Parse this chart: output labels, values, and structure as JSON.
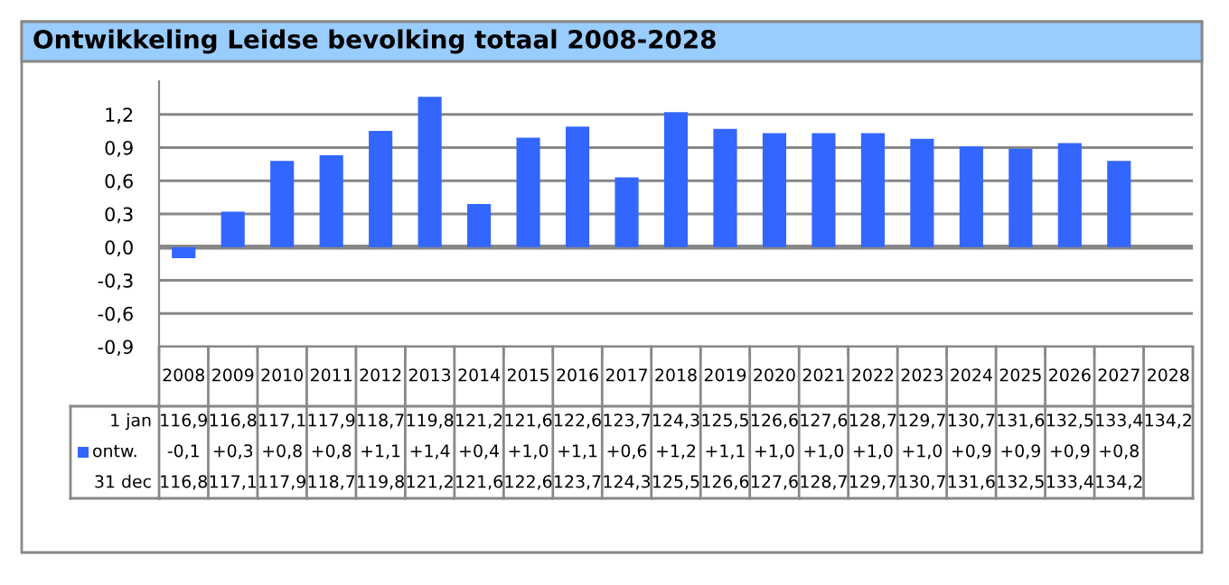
{
  "chart_data": {
    "type": "bar",
    "title": "Ontwikkeling Leidse bevolking totaal 2008-2028",
    "categories": [
      "2008",
      "2009",
      "2010",
      "2011",
      "2012",
      "2013",
      "2014",
      "2015",
      "2016",
      "2017",
      "2018",
      "2019",
      "2020",
      "2021",
      "2022",
      "2023",
      "2024",
      "2025",
      "2026",
      "2027",
      "2028"
    ],
    "series": [
      {
        "name": "ontw.",
        "color": "#3366ff",
        "values": [
          -0.1,
          0.32,
          0.78,
          0.83,
          1.05,
          1.36,
          0.39,
          0.99,
          1.09,
          0.63,
          1.22,
          1.07,
          1.03,
          1.03,
          1.03,
          0.98,
          0.91,
          0.89,
          0.94,
          0.78,
          null
        ],
        "value_labels": [
          "-0,1",
          "+0,3",
          "+0,8",
          "+0,8",
          "+1,1",
          "+1,4",
          "+0,4",
          "+1,0",
          "+1,1",
          "+0,6",
          "+1,2",
          "+1,1",
          "+1,0",
          "+1,0",
          "+1,0",
          "+1,0",
          "+0,9",
          "+0,9",
          "+0,9",
          "+0,8",
          null
        ]
      }
    ],
    "annotations": [
      "1 jan",
      "116,9",
      "116,8",
      "117,1",
      "117,9",
      "118,7",
      "119,8",
      "121,2",
      "121,6",
      "122,6",
      "123,7",
      "124,3",
      "125,5",
      "126,6",
      "127,6",
      "128,7",
      "129,7",
      "130,7",
      "131,6",
      "132,5",
      "133,4",
      "134,2",
      "31 dec",
      "116,8",
      "117,1",
      "117,9",
      "118,7",
      "119,8",
      "121,2",
      "121,6",
      "122,6",
      "123,7",
      "124,3",
      "125,5",
      "126,6",
      "127,6",
      "128,7",
      "129,7",
      "130,7",
      "131,6",
      "132,5",
      "133,4",
      "134,2"
    ],
    "ylim": [
      -0.9,
      1.5
    ],
    "yticks": [
      {
        "value": -0.9,
        "label": "-0,9"
      },
      {
        "value": -0.6,
        "label": "-0,6"
      },
      {
        "value": -0.3,
        "label": "-0,3"
      },
      {
        "value": 0,
        "label": "0,0"
      },
      {
        "value": 0.3,
        "label": "0,3"
      },
      {
        "value": 0.6,
        "label": "0,6"
      },
      {
        "value": 0.9,
        "label": "0,9"
      },
      {
        "value": 1.2,
        "label": "1,2"
      }
    ],
    "grid": "y"
  }
}
